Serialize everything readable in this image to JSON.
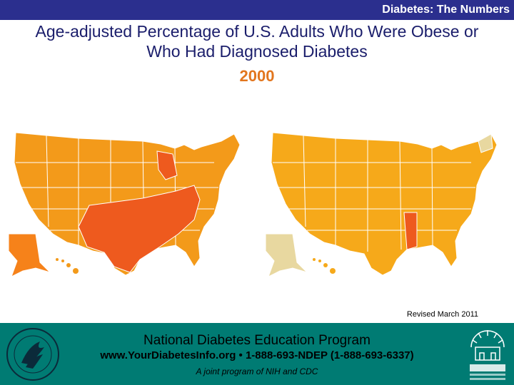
{
  "header": {
    "title": "Diabetes: The Numbers"
  },
  "slide": {
    "title_line1": "Age-adjusted Percentage of U.S. Adults Who Were Obese or",
    "title_line2": "Who Had Diagnosed Diabetes",
    "year": "2000",
    "revised": "Revised March 2011"
  },
  "maps": [
    {
      "topic": "obesity",
      "fill": "#f39a1a",
      "highlight": "#ee5a1e",
      "alaska_fill": "#f6821a"
    },
    {
      "topic": "diabetes",
      "fill": "#f6a91a",
      "highlight": "#ee5a1e",
      "alaska_fill": "#e8d8a0"
    }
  ],
  "footer": {
    "org": "National Diabetes Education Program",
    "contact": "www.YourDiabetesInfo.org • 1-888-693-NDEP (1-888-693-6337)",
    "tagline": "A joint program of NIH and CDC"
  },
  "logos": {
    "left": "hhs-seal-icon",
    "right": "ndep-logo-icon"
  }
}
